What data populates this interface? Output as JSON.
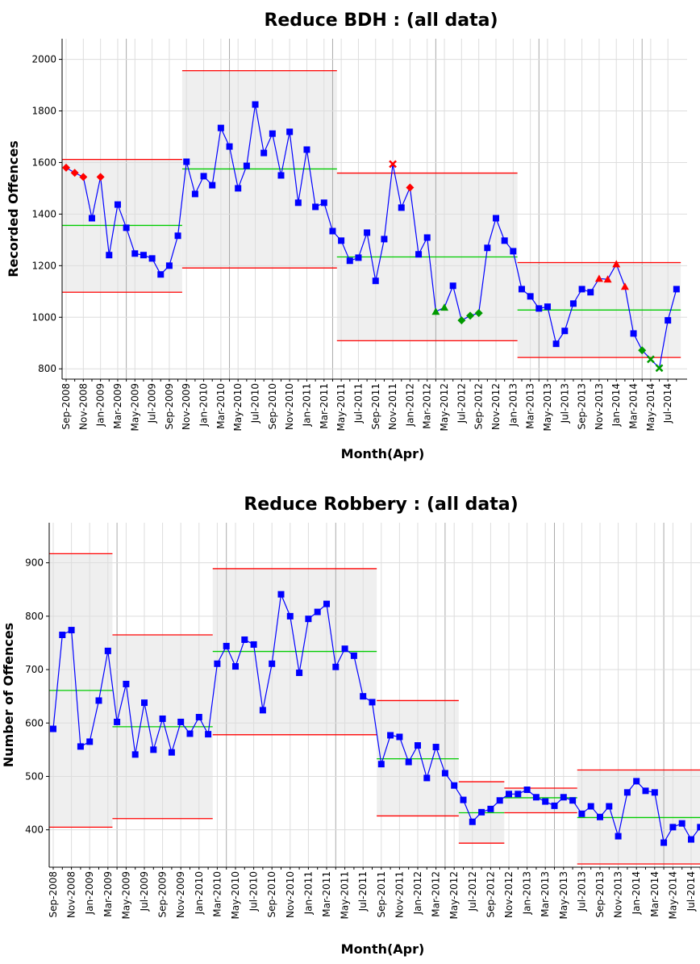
{
  "chart_data": [
    {
      "type": "line",
      "title": "Reduce BDH : (all data)",
      "xlabel": "Month(Apr)",
      "ylabel": "Recorded Offences",
      "categories": [
        "Sep-2008",
        null,
        "Nov-2008",
        null,
        "Jan-2009",
        null,
        "Mar-2009",
        null,
        "May-2009",
        null,
        "Jul-2009",
        null,
        "Sep-2009",
        null,
        "Nov-2009",
        null,
        "Jan-2010",
        null,
        "Mar-2010",
        null,
        "May-2010",
        null,
        "Jul-2010",
        null,
        "Sep-2010",
        null,
        "Nov-2010",
        null,
        "Jan-2011",
        null,
        "Mar-2011",
        null,
        "May-2011",
        null,
        "Jul-2011",
        null,
        "Sep-2011",
        null,
        "Nov-2011",
        null,
        "Jan-2012",
        null,
        "Mar-2012",
        null,
        "May-2012",
        null,
        "Jul-2012",
        null,
        "Sep-2012",
        null,
        "Nov-2012",
        null,
        "Jan-2013",
        null,
        "Mar-2013",
        null,
        "May-2013",
        null,
        "Jul-2013",
        null,
        "Sep-2013",
        null,
        "Nov-2013",
        null,
        "Jan-2014",
        null,
        "Mar-2014",
        null,
        "May-2014",
        null,
        "Jul-2014",
        null
      ],
      "series": [
        {
          "color": "#0000ff",
          "values": [
            1580,
            1560,
            1544,
            1384,
            1544,
            1241,
            1437,
            1347,
            1247,
            1241,
            1228,
            1166,
            1200,
            1316,
            1603,
            1478,
            1547,
            1512,
            1734,
            1662,
            1500,
            1587,
            1825,
            1637,
            1712,
            1550,
            1719,
            1444,
            1650,
            1428,
            1444,
            1334,
            1297,
            1219,
            1231,
            1328,
            1141,
            1303,
            1594,
            1425,
            1503,
            1244,
            1309,
            1022,
            1038,
            1122,
            988,
            1006,
            1016,
            1269,
            1384,
            1297,
            1256,
            1109,
            1081,
            1034,
            1041,
            897,
            947,
            1053,
            1109,
            1097,
            1150,
            1147,
            1206,
            1119,
            937,
            872,
            837,
            803,
            988,
            1109
          ],
          "markers": [
            "red-diamond",
            "red-diamond",
            "red-diamond",
            "square",
            "red-diamond",
            "square",
            "square",
            "square",
            "square",
            "square",
            "square",
            "square",
            "square",
            "square",
            "square",
            "square",
            "square",
            "square",
            "square",
            "square",
            "square",
            "square",
            "square",
            "square",
            "square",
            "square",
            "square",
            "square",
            "square",
            "square",
            "square",
            "square",
            "square",
            "square",
            "square",
            "square",
            "square",
            "square",
            "red-cross",
            "square",
            "red-diamond",
            "square",
            "square",
            "green-triangle",
            "green-triangle",
            "square",
            "green-diamond",
            "green-diamond",
            "green-diamond",
            "square",
            "square",
            "square",
            "square",
            "square",
            "square",
            "square",
            "square",
            "square",
            "square",
            "square",
            "square",
            "square",
            "red-triangle",
            "red-triangle",
            "red-triangle",
            "red-triangle",
            "square",
            "green-diamond",
            "green-cross",
            "green-cross",
            "square",
            "square"
          ]
        }
      ],
      "ucl": [
        1612,
        1612,
        1612,
        1612,
        1612,
        1612,
        1612,
        1612,
        1612,
        1612,
        1612,
        1612,
        1612,
        1612,
        1956,
        1956,
        1956,
        1956,
        1956,
        1956,
        1956,
        1956,
        1956,
        1956,
        1956,
        1956,
        1956,
        1956,
        1956,
        1956,
        1956,
        1956,
        1559,
        1559,
        1559,
        1559,
        1559,
        1559,
        1559,
        1559,
        1559,
        1559,
        1559,
        1559,
        1559,
        1559,
        1559,
        1559,
        1559,
        1559,
        1559,
        1559,
        1559,
        1212,
        1212,
        1212,
        1212,
        1212,
        1212,
        1212,
        1212,
        1212,
        1212,
        1212,
        1212,
        1212,
        1212,
        1212,
        1212,
        1212,
        1212,
        1212
      ],
      "mean": [
        1356,
        1356,
        1356,
        1356,
        1356,
        1356,
        1356,
        1356,
        1356,
        1356,
        1356,
        1356,
        1356,
        1356,
        1575,
        1575,
        1575,
        1575,
        1575,
        1575,
        1575,
        1575,
        1575,
        1575,
        1575,
        1575,
        1575,
        1575,
        1575,
        1575,
        1575,
        1575,
        1234,
        1234,
        1234,
        1234,
        1234,
        1234,
        1234,
        1234,
        1234,
        1234,
        1234,
        1234,
        1234,
        1234,
        1234,
        1234,
        1234,
        1234,
        1234,
        1234,
        1234,
        1028,
        1028,
        1028,
        1028,
        1028,
        1028,
        1028,
        1028,
        1028,
        1028,
        1028,
        1028,
        1028,
        1028,
        1028,
        1028,
        1028,
        1028,
        1028
      ],
      "lcl": [
        1097,
        1097,
        1097,
        1097,
        1097,
        1097,
        1097,
        1097,
        1097,
        1097,
        1097,
        1097,
        1097,
        1097,
        1191,
        1191,
        1191,
        1191,
        1191,
        1191,
        1191,
        1191,
        1191,
        1191,
        1191,
        1191,
        1191,
        1191,
        1191,
        1191,
        1191,
        1191,
        909,
        909,
        909,
        909,
        909,
        909,
        909,
        909,
        909,
        909,
        909,
        909,
        909,
        909,
        909,
        909,
        909,
        909,
        909,
        909,
        909,
        844,
        844,
        844,
        844,
        844,
        844,
        844,
        844,
        844,
        844,
        844,
        844,
        844,
        844,
        844,
        844,
        844,
        844,
        844
      ],
      "limit_color": "#ff0000",
      "mean_color": "#00cc00",
      "band_color": "#efefef",
      "ylim": [
        760,
        2080
      ],
      "yticks": [
        800,
        1000,
        1200,
        1400,
        1600,
        1800,
        2000
      ],
      "grid": true
    },
    {
      "type": "line",
      "title": "Reduce Robbery : (all data)",
      "xlabel": "Month(Apr)",
      "ylabel": "Number of Offences",
      "categories": [
        "Sep-2008",
        null,
        "Nov-2008",
        null,
        "Jan-2009",
        null,
        "Mar-2009",
        null,
        "May-2009",
        null,
        "Jul-2009",
        null,
        "Sep-2009",
        null,
        "Nov-2009",
        null,
        "Jan-2010",
        null,
        "Mar-2010",
        null,
        "May-2010",
        null,
        "Jul-2010",
        null,
        "Sep-2010",
        null,
        "Nov-2010",
        null,
        "Jan-2011",
        null,
        "Mar-2011",
        null,
        "May-2011",
        null,
        "Jul-2011",
        null,
        "Sep-2011",
        null,
        "Nov-2011",
        null,
        "Jan-2012",
        null,
        "Mar-2012",
        null,
        "May-2012",
        null,
        "Jul-2012",
        null,
        "Sep-2012",
        null,
        "Nov-2012",
        null,
        "Jan-2013",
        null,
        "Mar-2013",
        null,
        "May-2013",
        null,
        "Jul-2013",
        null,
        "Sep-2013",
        null,
        "Nov-2013",
        null,
        "Jan-2014",
        null,
        "Mar-2014",
        null,
        "May-2014",
        null,
        "Jul-2014",
        null
      ],
      "series": [
        {
          "color": "#0000ff",
          "marker": "square",
          "values": [
            589,
            765,
            774,
            556,
            565,
            642,
            735,
            602,
            673,
            541,
            638,
            550,
            608,
            545,
            602,
            580,
            611,
            579,
            711,
            744,
            706,
            756,
            747,
            624,
            711,
            841,
            800,
            694,
            795,
            808,
            823,
            705,
            739,
            726,
            650,
            639,
            523,
            577,
            574,
            527,
            558,
            497,
            555,
            506,
            483,
            456,
            415,
            433,
            439,
            455,
            467,
            467,
            475,
            461,
            453,
            445,
            461,
            455,
            430,
            444,
            424,
            444,
            388,
            470,
            491,
            473,
            470,
            376,
            405,
            412,
            382,
            405
          ]
        }
      ],
      "ucl": [
        917,
        917,
        917,
        917,
        917,
        917,
        917,
        765,
        765,
        765,
        765,
        765,
        765,
        765,
        765,
        765,
        765,
        765,
        889,
        889,
        889,
        889,
        889,
        889,
        889,
        889,
        889,
        889,
        889,
        889,
        889,
        889,
        889,
        889,
        889,
        889,
        642,
        642,
        642,
        642,
        642,
        642,
        642,
        642,
        642,
        490,
        490,
        490,
        490,
        490,
        478,
        478,
        478,
        478,
        478,
        478,
        478,
        478,
        512,
        512,
        512,
        512,
        512,
        512,
        512,
        512,
        512,
        512,
        512,
        512,
        512,
        512
      ],
      "mean": [
        661,
        661,
        661,
        661,
        661,
        661,
        661,
        593,
        593,
        593,
        593,
        593,
        593,
        593,
        593,
        593,
        593,
        593,
        734,
        734,
        734,
        734,
        734,
        734,
        734,
        734,
        734,
        734,
        734,
        734,
        734,
        734,
        734,
        734,
        734,
        734,
        533,
        533,
        533,
        533,
        533,
        533,
        533,
        533,
        533,
        432,
        432,
        432,
        432,
        432,
        460,
        460,
        460,
        460,
        460,
        460,
        460,
        460,
        423,
        423,
        423,
        423,
        423,
        423,
        423,
        423,
        423,
        423,
        423,
        423,
        423,
        423
      ],
      "lcl": [
        405,
        405,
        405,
        405,
        405,
        405,
        405,
        421,
        421,
        421,
        421,
        421,
        421,
        421,
        421,
        421,
        421,
        421,
        578,
        578,
        578,
        578,
        578,
        578,
        578,
        578,
        578,
        578,
        578,
        578,
        578,
        578,
        578,
        578,
        578,
        578,
        426,
        426,
        426,
        426,
        426,
        426,
        426,
        426,
        426,
        375,
        375,
        375,
        375,
        375,
        432,
        432,
        432,
        432,
        432,
        432,
        432,
        432,
        336,
        336,
        336,
        336,
        336,
        336,
        336,
        336,
        336,
        336,
        336,
        336,
        336,
        336
      ],
      "limit_color": "#ff0000",
      "mean_color": "#00cc00",
      "band_color": "#efefef",
      "ylim": [
        330,
        975
      ],
      "yticks": [
        400,
        500,
        600,
        700,
        800,
        900
      ],
      "grid": true
    }
  ]
}
